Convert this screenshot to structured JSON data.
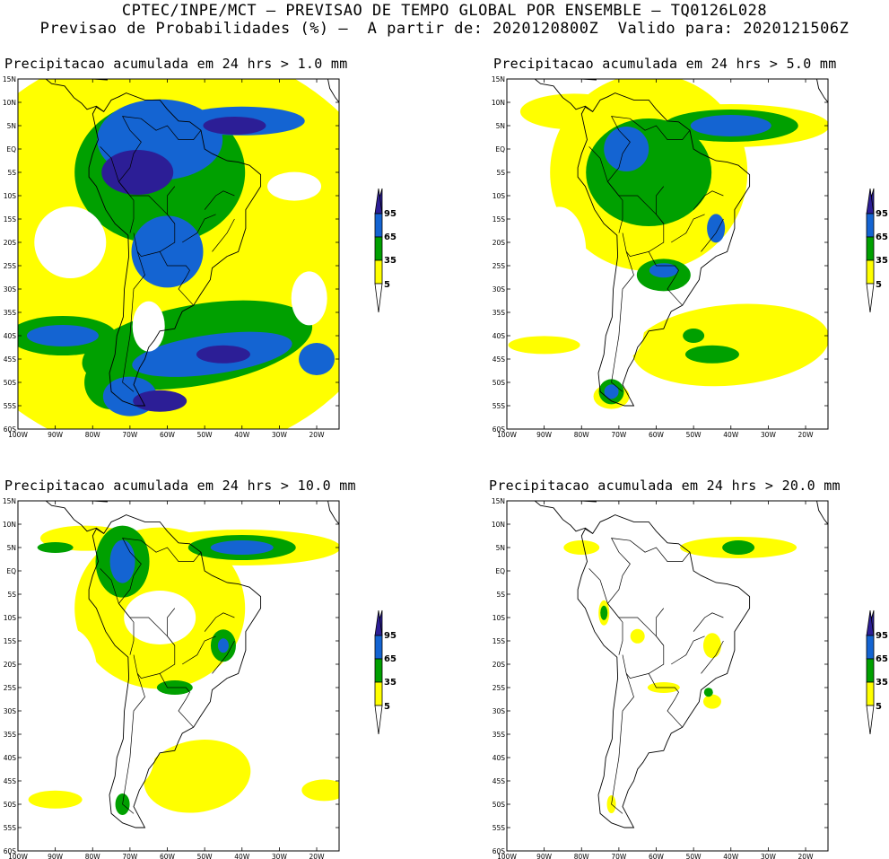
{
  "header": {
    "line1": "CPTEC/INPE/MCT — PREVISAO DE TEMPO GLOBAL POR ENSEMBLE — TQ0126L028",
    "line2": "Previsao de Probabilidades (%) —  A partir de: 2020120800Z  Valido para: 2020121506Z"
  },
  "lat_labels": [
    "15N",
    "10N",
    "5N",
    "EQ",
    "5S",
    "10S",
    "15S",
    "20S",
    "25S",
    "30S",
    "35S",
    "40S",
    "45S",
    "50S",
    "55S",
    "60S"
  ],
  "lon_labels": [
    "100W",
    "90W",
    "80W",
    "70W",
    "60W",
    "50W",
    "40W",
    "30W",
    "20W"
  ],
  "legend": {
    "ticks": [
      "95",
      "65",
      "35",
      "5"
    ],
    "colors": {
      "p5": "#ffff00",
      "p35": "#00a000",
      "p65": "#1464d2",
      "p95": "#2c1e96"
    }
  },
  "panels": [
    {
      "title": "Precipitacao acumulada em 24 hrs > 1.0 mm",
      "threshold_mm": 1.0
    },
    {
      "title": "Precipitacao acumulada em 24 hrs > 5.0 mm",
      "threshold_mm": 5.0
    },
    {
      "title": "Precipitacao acumulada em 24 hrs > 10.0 mm",
      "threshold_mm": 10.0
    },
    {
      "title": "Precipitacao acumulada em 24 hrs > 20.0 mm",
      "threshold_mm": 20.0
    }
  ]
}
